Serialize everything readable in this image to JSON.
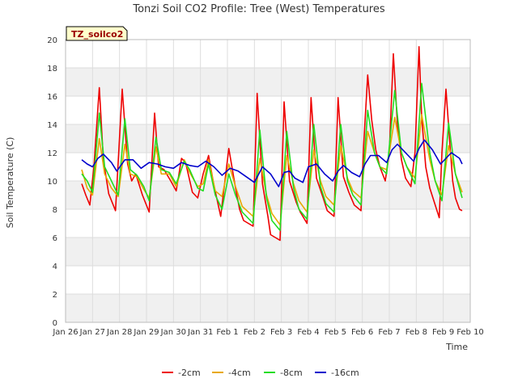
{
  "chart_data": {
    "type": "line",
    "title": "Tonzi Soil CO2 Profile: Tree (West) Temperatures",
    "xlabel": "Time",
    "ylabel": "Soil Temperature (C)",
    "badge": "TZ_soilco2",
    "xlim": [
      0,
      15
    ],
    "ylim": [
      0,
      20
    ],
    "grid": true,
    "legend_position": "bottom-center",
    "x_ticks": [
      {
        "x": 0,
        "label": "Jan 26"
      },
      {
        "x": 1,
        "label": "Jan 27"
      },
      {
        "x": 2,
        "label": "Jan 28"
      },
      {
        "x": 3,
        "label": "Jan 29"
      },
      {
        "x": 4,
        "label": "Jan 30"
      },
      {
        "x": 5,
        "label": "Jan 31"
      },
      {
        "x": 6,
        "label": "Feb 1"
      },
      {
        "x": 7,
        "label": "Feb 2"
      },
      {
        "x": 8,
        "label": "Feb 3"
      },
      {
        "x": 9,
        "label": "Feb 4"
      },
      {
        "x": 10,
        "label": "Feb 5"
      },
      {
        "x": 11,
        "label": "Feb 6"
      },
      {
        "x": 12,
        "label": "Feb 7"
      },
      {
        "x": 13,
        "label": "Feb 8"
      },
      {
        "x": 14,
        "label": "Feb 9"
      },
      {
        "x": 15,
        "label": "Feb 10"
      }
    ],
    "y_ticks": [
      0,
      2,
      4,
      6,
      8,
      10,
      12,
      14,
      16,
      18,
      20
    ],
    "series": [
      {
        "name": "-2cm",
        "color": "#ee0000",
        "x": [
          0.6,
          0.75,
          0.9,
          1.05,
          1.25,
          1.4,
          1.6,
          1.85,
          2.1,
          2.3,
          2.45,
          2.6,
          2.85,
          3.1,
          3.3,
          3.45,
          3.65,
          3.9,
          4.1,
          4.3,
          4.45,
          4.7,
          4.9,
          5.1,
          5.3,
          5.5,
          5.75,
          6.05,
          6.3,
          6.45,
          6.6,
          6.95,
          7.1,
          7.3,
          7.5,
          7.6,
          7.95,
          8.1,
          8.3,
          8.55,
          8.7,
          8.95,
          9.1,
          9.3,
          9.55,
          9.7,
          9.95,
          10.1,
          10.3,
          10.5,
          10.7,
          10.95,
          11.05,
          11.2,
          11.35,
          11.5,
          11.65,
          11.85,
          12.0,
          12.15,
          12.3,
          12.45,
          12.6,
          12.8,
          12.95,
          13.1,
          13.2,
          13.35,
          13.5,
          13.7,
          13.85,
          13.95,
          14.1,
          14.25,
          14.35,
          14.45,
          14.6,
          14.7
        ],
        "values": [
          9.8,
          9.0,
          8.3,
          11.0,
          16.6,
          11.5,
          9.1,
          7.9,
          16.5,
          11.2,
          10.0,
          10.5,
          9.0,
          7.8,
          14.8,
          11.0,
          10.8,
          10.0,
          9.3,
          11.6,
          11.3,
          9.2,
          8.8,
          10.5,
          11.8,
          9.7,
          7.5,
          12.3,
          9.5,
          8.0,
          7.2,
          6.8,
          16.2,
          9.8,
          7.5,
          6.2,
          5.8,
          15.6,
          10.0,
          8.5,
          7.8,
          7.0,
          15.9,
          10.2,
          8.8,
          7.9,
          7.5,
          15.9,
          10.3,
          9.2,
          8.3,
          7.9,
          12.5,
          17.5,
          14.3,
          12.2,
          11.0,
          10.0,
          12.0,
          19.0,
          14.0,
          11.5,
          10.2,
          9.6,
          12.0,
          19.5,
          14.5,
          11.0,
          9.5,
          8.3,
          7.4,
          12.0,
          16.5,
          12.5,
          10.0,
          8.8,
          8.0,
          7.9
        ]
      },
      {
        "name": "-4cm",
        "color": "#e8a800",
        "x": [
          0.6,
          0.8,
          1.0,
          1.25,
          1.45,
          1.7,
          1.95,
          2.2,
          2.4,
          2.65,
          2.9,
          3.1,
          3.35,
          3.55,
          3.85,
          4.1,
          4.4,
          4.6,
          4.9,
          5.1,
          5.3,
          5.55,
          5.8,
          6.05,
          6.3,
          6.55,
          6.95,
          7.2,
          7.45,
          7.65,
          7.95,
          8.2,
          8.45,
          8.65,
          8.95,
          9.2,
          9.45,
          9.65,
          9.95,
          10.2,
          10.45,
          10.65,
          10.95,
          11.2,
          11.45,
          11.65,
          11.9,
          12.2,
          12.45,
          12.65,
          12.95,
          13.2,
          13.5,
          13.7,
          13.95,
          14.2,
          14.45,
          14.7
        ],
        "values": [
          10.8,
          9.5,
          9.0,
          13.0,
          10.5,
          9.5,
          8.9,
          12.6,
          10.5,
          10.3,
          9.4,
          8.8,
          12.4,
          10.5,
          10.5,
          9.6,
          11.5,
          10.6,
          9.6,
          9.8,
          11.5,
          9.3,
          8.9,
          11.2,
          9.6,
          8.2,
          7.5,
          11.6,
          9.0,
          7.7,
          6.9,
          11.8,
          9.8,
          8.6,
          7.8,
          12.2,
          10.0,
          8.9,
          8.3,
          12.5,
          10.2,
          9.3,
          8.8,
          13.5,
          12.0,
          11.0,
          10.8,
          14.5,
          12.0,
          11.0,
          10.2,
          14.7,
          11.5,
          10.0,
          9.0,
          12.5,
          10.5,
          9.2
        ]
      },
      {
        "name": "-8cm",
        "color": "#22dd22",
        "x": [
          0.6,
          0.8,
          1.0,
          1.25,
          1.45,
          1.7,
          1.95,
          2.2,
          2.4,
          2.65,
          2.9,
          3.1,
          3.35,
          3.55,
          3.85,
          4.1,
          4.4,
          4.6,
          4.9,
          5.1,
          5.3,
          5.55,
          5.8,
          6.05,
          6.3,
          6.55,
          6.95,
          7.2,
          7.45,
          7.65,
          7.95,
          8.2,
          8.45,
          8.65,
          8.95,
          9.2,
          9.45,
          9.65,
          9.95,
          10.2,
          10.45,
          10.65,
          10.95,
          11.2,
          11.45,
          11.65,
          11.9,
          12.2,
          12.45,
          12.65,
          12.95,
          13.2,
          13.5,
          13.7,
          13.95,
          14.2,
          14.45,
          14.7
        ],
        "values": [
          10.5,
          10.0,
          9.2,
          14.8,
          11.0,
          10.0,
          9.0,
          14.4,
          10.8,
          10.4,
          9.6,
          8.6,
          13.1,
          10.8,
          10.6,
          9.8,
          11.4,
          10.8,
          9.5,
          9.3,
          11.2,
          9.0,
          8.0,
          10.5,
          9.0,
          7.8,
          7.0,
          13.6,
          8.8,
          7.2,
          6.5,
          13.5,
          9.5,
          8.0,
          7.3,
          14.0,
          9.6,
          8.4,
          7.8,
          14.0,
          10.0,
          9.0,
          8.3,
          15.0,
          12.0,
          11.0,
          10.5,
          16.4,
          12.0,
          11.0,
          9.8,
          16.9,
          12.0,
          10.0,
          8.6,
          14.1,
          10.5,
          8.8
        ]
      },
      {
        "name": "-16cm",
        "color": "#0000cc",
        "x": [
          0.6,
          0.8,
          1.0,
          1.2,
          1.4,
          1.7,
          1.9,
          2.2,
          2.5,
          2.8,
          3.1,
          3.4,
          3.7,
          4.0,
          4.3,
          4.6,
          4.9,
          5.2,
          5.5,
          5.8,
          6.1,
          6.4,
          6.7,
          7.0,
          7.3,
          7.6,
          7.9,
          8.1,
          8.3,
          8.5,
          8.8,
          9.0,
          9.3,
          9.6,
          9.9,
          10.1,
          10.3,
          10.6,
          10.9,
          11.1,
          11.3,
          11.6,
          11.9,
          12.1,
          12.3,
          12.6,
          12.9,
          13.1,
          13.3,
          13.6,
          13.9,
          14.1,
          14.3,
          14.6,
          14.7
        ],
        "values": [
          11.5,
          11.2,
          11.0,
          11.6,
          11.9,
          11.3,
          10.7,
          11.5,
          11.5,
          10.9,
          11.3,
          11.2,
          11.0,
          10.9,
          11.3,
          11.1,
          11.0,
          11.4,
          11.0,
          10.4,
          10.9,
          10.7,
          10.3,
          9.9,
          11.0,
          10.5,
          9.6,
          10.6,
          10.7,
          10.2,
          9.9,
          11.0,
          11.2,
          10.5,
          10.0,
          10.7,
          11.1,
          10.6,
          10.3,
          11.2,
          11.8,
          11.8,
          11.3,
          12.2,
          12.6,
          12.0,
          11.4,
          12.3,
          12.9,
          12.2,
          11.2,
          11.6,
          12.0,
          11.6,
          11.2
        ]
      }
    ]
  }
}
